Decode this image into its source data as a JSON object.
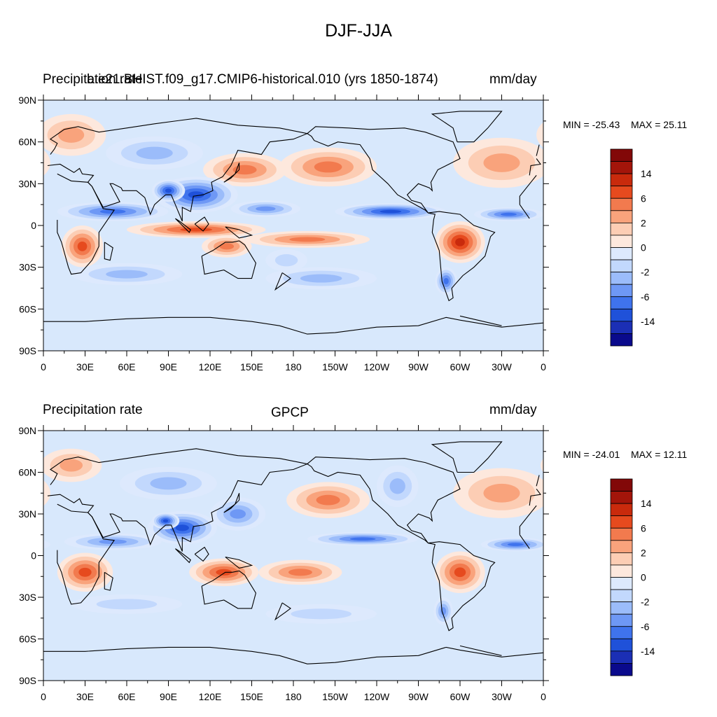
{
  "figure": {
    "title": "DJF-JJA"
  },
  "colormap": {
    "bins": [
      "#0a0a8c",
      "#1b2fb5",
      "#1f51d9",
      "#3f73ed",
      "#6e98f5",
      "#9bbcfa",
      "#c2d8fd",
      "#dde9fd",
      "#fde8dd",
      "#fccdb4",
      "#f9a37c",
      "#f27a4e",
      "#e64a1e",
      "#c92a0c",
      "#a3150a",
      "#820808"
    ],
    "ocean_bg": "#d8e8fc"
  },
  "chart_data": [
    {
      "type": "heatmap",
      "map_projection": "cylindrical-equidistant",
      "left_title": "Precipitation rate",
      "center_title": "b.e21.BHIST.f09_g17.CMIP6-historical.010 (yrs 1850-1874)",
      "right_title": "mm/day",
      "min_label": "MIN = -25.43",
      "max_label": "MAX =  25.11",
      "x_ticks": [
        "0",
        "30E",
        "60E",
        "90E",
        "120E",
        "150E",
        "180",
        "150W",
        "120W",
        "90W",
        "60W",
        "30W",
        "0"
      ],
      "y_ticks": [
        "90N",
        "60N",
        "30N",
        "0",
        "30S",
        "60S",
        "90S"
      ],
      "colorbar_labels": [
        "14",
        "6",
        "2",
        "0",
        "-2",
        "-6",
        "-14"
      ],
      "fields": [
        {
          "lon": 145,
          "lat": 40,
          "rx": 30,
          "ry": 12,
          "v": 4
        },
        {
          "lon": 205,
          "lat": 42,
          "rx": 35,
          "ry": 14,
          "v": 5
        },
        {
          "lon": 330,
          "lat": 45,
          "rx": 35,
          "ry": 18,
          "v": 3
        },
        {
          "lon": 20,
          "lat": 65,
          "rx": 25,
          "ry": 15,
          "v": 3
        },
        {
          "lon": 50,
          "lat": 10,
          "rx": 40,
          "ry": 7,
          "v": -7
        },
        {
          "lon": 110,
          "lat": 22,
          "rx": 30,
          "ry": 13,
          "v": -12
        },
        {
          "lon": 90,
          "lat": 25,
          "rx": 12,
          "ry": 8,
          "v": -14
        },
        {
          "lon": 250,
          "lat": 10,
          "rx": 40,
          "ry": 6,
          "v": -12
        },
        {
          "lon": 335,
          "lat": 8,
          "rx": 25,
          "ry": 5,
          "v": -10
        },
        {
          "lon": 160,
          "lat": 12,
          "rx": 25,
          "ry": 6,
          "v": -5
        },
        {
          "lon": 80,
          "lat": 52,
          "rx": 35,
          "ry": 12,
          "v": -3
        },
        {
          "lon": 110,
          "lat": -3,
          "rx": 50,
          "ry": 6,
          "v": 7
        },
        {
          "lon": 190,
          "lat": -10,
          "rx": 45,
          "ry": 6,
          "v": 5
        },
        {
          "lon": 28,
          "lat": -15,
          "rx": 15,
          "ry": 15,
          "v": 8
        },
        {
          "lon": 300,
          "lat": -12,
          "rx": 18,
          "ry": 15,
          "v": 10
        },
        {
          "lon": 132,
          "lat": -15,
          "rx": 18,
          "ry": 8,
          "v": 4
        },
        {
          "lon": 60,
          "lat": -35,
          "rx": 40,
          "ry": 8,
          "v": -3
        },
        {
          "lon": 200,
          "lat": -38,
          "rx": 40,
          "ry": 8,
          "v": -3
        },
        {
          "lon": 175,
          "lat": -25,
          "rx": 15,
          "ry": 8,
          "v": -2
        },
        {
          "lon": 290,
          "lat": -40,
          "rx": 8,
          "ry": 10,
          "v": -8
        }
      ]
    },
    {
      "type": "heatmap",
      "map_projection": "cylindrical-equidistant",
      "left_title": "Precipitation rate",
      "center_title": "GPCP",
      "right_title": "mm/day",
      "min_label": "MIN = -24.01",
      "max_label": "MAX =  12.11",
      "x_ticks": [
        "0",
        "30E",
        "60E",
        "90E",
        "120E",
        "150E",
        "180",
        "150W",
        "120W",
        "90W",
        "60W",
        "30W",
        "0"
      ],
      "y_ticks": [
        "90N",
        "60N",
        "30N",
        "0",
        "30S",
        "60S",
        "90S"
      ],
      "colorbar_labels": [
        "14",
        "6",
        "2",
        "0",
        "-2",
        "-6",
        "-14"
      ],
      "fields": [
        {
          "lon": 205,
          "lat": 40,
          "rx": 30,
          "ry": 13,
          "v": 4
        },
        {
          "lon": 330,
          "lat": 45,
          "rx": 35,
          "ry": 18,
          "v": 3
        },
        {
          "lon": 20,
          "lat": 65,
          "rx": 22,
          "ry": 12,
          "v": 2
        },
        {
          "lon": 50,
          "lat": 10,
          "rx": 35,
          "ry": 6,
          "v": -6
        },
        {
          "lon": 100,
          "lat": 20,
          "rx": 25,
          "ry": 12,
          "v": -12
        },
        {
          "lon": 88,
          "lat": 25,
          "rx": 10,
          "ry": 6,
          "v": -14
        },
        {
          "lon": 140,
          "lat": 30,
          "rx": 20,
          "ry": 12,
          "v": -5
        },
        {
          "lon": 230,
          "lat": 12,
          "rx": 40,
          "ry": 5,
          "v": -9
        },
        {
          "lon": 340,
          "lat": 8,
          "rx": 25,
          "ry": 5,
          "v": -8
        },
        {
          "lon": 90,
          "lat": 52,
          "rx": 35,
          "ry": 12,
          "v": -3
        },
        {
          "lon": 255,
          "lat": 50,
          "rx": 15,
          "ry": 15,
          "v": -3
        },
        {
          "lon": 30,
          "lat": -12,
          "rx": 20,
          "ry": 14,
          "v": 8
        },
        {
          "lon": 130,
          "lat": -12,
          "rx": 25,
          "ry": 10,
          "v": 7
        },
        {
          "lon": 185,
          "lat": -12,
          "rx": 30,
          "ry": 9,
          "v": 4
        },
        {
          "lon": 300,
          "lat": -12,
          "rx": 18,
          "ry": 15,
          "v": 9
        },
        {
          "lon": 60,
          "lat": -35,
          "rx": 40,
          "ry": 7,
          "v": -2
        },
        {
          "lon": 200,
          "lat": -42,
          "rx": 40,
          "ry": 7,
          "v": -2
        },
        {
          "lon": 288,
          "lat": -40,
          "rx": 7,
          "ry": 10,
          "v": -6
        }
      ]
    }
  ],
  "coast_paths": [
    [
      [
        -17,
        15
      ],
      [
        -10,
        5
      ],
      [
        10,
        4
      ],
      [
        10,
        -5
      ],
      [
        13,
        -12
      ],
      [
        18,
        -30
      ],
      [
        20,
        -35
      ],
      [
        27,
        -34
      ],
      [
        35,
        -25
      ],
      [
        40,
        -15
      ],
      [
        40,
        -5
      ],
      [
        51,
        11
      ],
      [
        43,
        12
      ],
      [
        35,
        28
      ],
      [
        32,
        31
      ],
      [
        20,
        32
      ],
      [
        10,
        37
      ],
      [
        -5,
        36
      ],
      [
        -17,
        21
      ],
      [
        -17,
        15
      ]
    ],
    [
      [
        -10,
        36
      ],
      [
        -9,
        43
      ],
      [
        -2,
        44
      ],
      [
        -5,
        48
      ],
      [
        5,
        51
      ],
      [
        8,
        55
      ],
      [
        10,
        59
      ],
      [
        5,
        62
      ],
      [
        15,
        69
      ],
      [
        25,
        71
      ],
      [
        40,
        67
      ],
      [
        60,
        70
      ],
      [
        80,
        73
      ],
      [
        110,
        77
      ],
      [
        140,
        72
      ],
      [
        170,
        70
      ],
      [
        190,
        66
      ],
      [
        180,
        62
      ],
      [
        163,
        60
      ],
      [
        157,
        51
      ],
      [
        140,
        54
      ],
      [
        135,
        43
      ],
      [
        129,
        35
      ],
      [
        121,
        31
      ],
      [
        122,
        25
      ],
      [
        115,
        22
      ],
      [
        108,
        21
      ],
      [
        106,
        10
      ],
      [
        100,
        13
      ],
      [
        100,
        3
      ],
      [
        95,
        15
      ],
      [
        92,
        22
      ],
      [
        88,
        22
      ],
      [
        80,
        15
      ],
      [
        77,
        8
      ],
      [
        73,
        20
      ],
      [
        67,
        25
      ],
      [
        57,
        25
      ],
      [
        56,
        27
      ],
      [
        50,
        30
      ],
      [
        48,
        30
      ],
      [
        55,
        17
      ],
      [
        43,
        13
      ],
      [
        35,
        28
      ],
      [
        32,
        31
      ],
      [
        36,
        36
      ],
      [
        28,
        37
      ],
      [
        26,
        41
      ],
      [
        22,
        38
      ],
      [
        12,
        44
      ],
      [
        3,
        43
      ],
      [
        -10,
        36
      ]
    ],
    [
      [
        190,
        66
      ],
      [
        196,
        71
      ],
      [
        220,
        70
      ],
      [
        235,
        69
      ],
      [
        260,
        70
      ],
      [
        275,
        67
      ],
      [
        295,
        60
      ],
      [
        300,
        48
      ],
      [
        290,
        43
      ],
      [
        284,
        40
      ],
      [
        279,
        31
      ],
      [
        280,
        25
      ],
      [
        278,
        27
      ],
      [
        270,
        30
      ],
      [
        262,
        22
      ],
      [
        265,
        18
      ],
      [
        272,
        16
      ],
      [
        277,
        9
      ],
      [
        282,
        8
      ],
      [
        281,
        4
      ],
      [
        280,
        -5
      ],
      [
        285,
        -18
      ],
      [
        287,
        -40
      ],
      [
        292,
        -54
      ],
      [
        295,
        -52
      ],
      [
        294,
        -45
      ],
      [
        302,
        -36
      ],
      [
        310,
        -30
      ],
      [
        318,
        -22
      ],
      [
        322,
        -8
      ],
      [
        325,
        -5
      ],
      [
        310,
        0
      ],
      [
        300,
        8
      ],
      [
        285,
        10
      ],
      [
        277,
        9
      ],
      [
        275,
        11
      ],
      [
        255,
        22
      ],
      [
        248,
        30
      ],
      [
        237,
        40
      ],
      [
        235,
        48
      ],
      [
        228,
        58
      ],
      [
        212,
        60
      ],
      [
        205,
        57
      ],
      [
        195,
        61
      ],
      [
        193,
        64
      ],
      [
        190,
        66
      ]
    ],
    [
      [
        114,
        -22
      ],
      [
        116,
        -35
      ],
      [
        130,
        -32
      ],
      [
        140,
        -38
      ],
      [
        150,
        -38
      ],
      [
        153,
        -27
      ],
      [
        145,
        -14
      ],
      [
        141,
        -11
      ],
      [
        136,
        -12
      ],
      [
        131,
        -12
      ],
      [
        122,
        -18
      ],
      [
        114,
        -22
      ]
    ],
    [
      [
        298,
        60
      ],
      [
        310,
        60
      ],
      [
        320,
        70
      ],
      [
        330,
        82
      ],
      [
        300,
        82
      ],
      [
        280,
        80
      ],
      [
        295,
        70
      ],
      [
        298,
        60
      ]
    ],
    [
      [
        -5,
        50
      ],
      [
        -3,
        58
      ],
      [
        2,
        52
      ],
      [
        -5,
        50
      ]
    ],
    [
      [
        44,
        -12
      ],
      [
        50,
        -16
      ],
      [
        48,
        -25
      ],
      [
        44,
        -24
      ],
      [
        44,
        -12
      ]
    ],
    [
      [
        95,
        5
      ],
      [
        105,
        -5
      ],
      [
        106,
        -3
      ],
      [
        98,
        3
      ],
      [
        95,
        5
      ]
    ],
    [
      [
        109,
        1
      ],
      [
        115,
        -4
      ],
      [
        119,
        1
      ],
      [
        116,
        6
      ],
      [
        109,
        1
      ]
    ],
    [
      [
        131,
        -1
      ],
      [
        141,
        -3
      ],
      [
        150,
        -7
      ],
      [
        141,
        -9
      ],
      [
        131,
        -1
      ]
    ],
    [
      [
        130,
        31
      ],
      [
        135,
        34
      ],
      [
        141,
        40
      ],
      [
        141,
        45
      ],
      [
        138,
        37
      ],
      [
        130,
        31
      ]
    ],
    [
      [
        172,
        -34
      ],
      [
        178,
        -38
      ],
      [
        174,
        -41
      ],
      [
        167,
        -46
      ],
      [
        172,
        -34
      ]
    ],
    [
      [
        -60,
        -65
      ],
      [
        -30,
        -72
      ],
      [
        0,
        -69
      ],
      [
        30,
        -69
      ],
      [
        60,
        -67
      ],
      [
        90,
        -66
      ],
      [
        120,
        -66
      ],
      [
        150,
        -69
      ],
      [
        170,
        -72
      ],
      [
        190,
        -78
      ],
      [
        210,
        -77
      ],
      [
        240,
        -73
      ],
      [
        270,
        -72
      ],
      [
        290,
        -66
      ],
      [
        300,
        -68
      ],
      [
        330,
        -73
      ],
      [
        360,
        -70
      ]
    ]
  ]
}
